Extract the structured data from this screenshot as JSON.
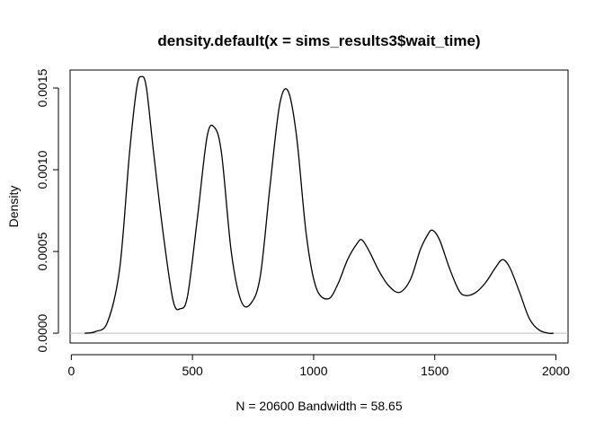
{
  "chart_data": {
    "type": "line",
    "title": "density.default(x = sims_results3$wait_time)",
    "xlabel": "N = 20600   Bandwidth = 58.65",
    "ylabel": "Density",
    "xlim": [
      -5,
      2050
    ],
    "ylim": [
      -6e-05,
      0.00161
    ],
    "x_ticks": [
      0,
      500,
      1000,
      1500,
      2000
    ],
    "x_tick_labels": [
      "0",
      "500",
      "1000",
      "1500",
      "2000"
    ],
    "y_ticks": [
      0.0,
      0.0005,
      0.001,
      0.0015
    ],
    "y_tick_labels": [
      "0.0000",
      "0.0005",
      "0.0010",
      "0.0015"
    ],
    "baseline": 0,
    "baseline_color": "#bebebe",
    "line_color": "#000000",
    "grid": false,
    "series": [
      {
        "x": [
          55,
          100,
          150,
          200,
          240,
          270,
          290,
          310,
          340,
          380,
          420,
          450,
          480,
          520,
          560,
          590,
          620,
          660,
          700,
          740,
          780,
          820,
          860,
          895,
          930,
          970,
          1010,
          1060,
          1100,
          1140,
          1180,
          1200,
          1230,
          1270,
          1310,
          1355,
          1400,
          1440,
          1470,
          1490,
          1520,
          1560,
          1600,
          1630,
          1670,
          1710,
          1750,
          1780,
          1810,
          1850,
          1890,
          1930,
          1970,
          1990
        ],
        "y": [
          0.0,
          1e-05,
          7e-05,
          0.0004,
          0.0011,
          0.0015,
          0.00157,
          0.0015,
          0.0011,
          0.0006,
          0.0002,
          0.00015,
          0.00023,
          0.0007,
          0.0012,
          0.00126,
          0.0011,
          0.0005,
          0.0002,
          0.00018,
          0.00035,
          0.0009,
          0.0014,
          0.00148,
          0.0012,
          0.0006,
          0.00028,
          0.00021,
          0.0003,
          0.00045,
          0.00055,
          0.00057,
          0.0005,
          0.00038,
          0.00029,
          0.00025,
          0.00033,
          0.00051,
          0.0006,
          0.00063,
          0.00057,
          0.0004,
          0.00026,
          0.00023,
          0.00025,
          0.00031,
          0.0004,
          0.00045,
          0.0004,
          0.00025,
          9e-05,
          2e-05,
          0.0,
          0.0
        ]
      }
    ]
  }
}
